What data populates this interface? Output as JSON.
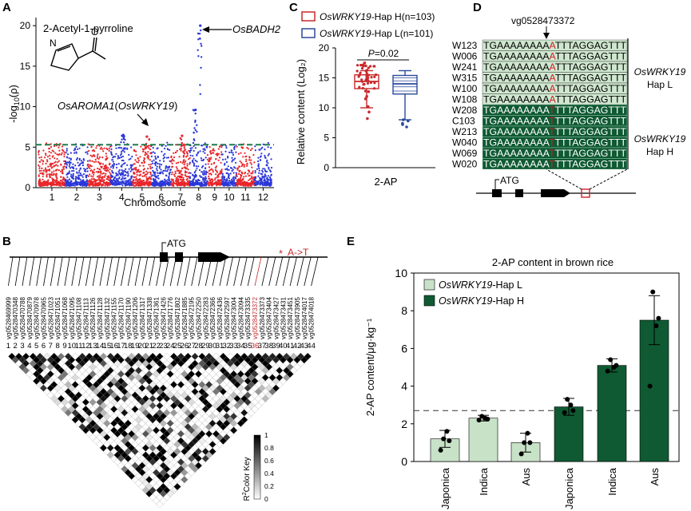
{
  "panels": {
    "A": {
      "letter": "A",
      "compound": "2-Acetyl-1-pyrroline",
      "ylabel_prefix": "-log",
      "ylabel_sub": "10",
      "ylabel_suffix": "(ρ)",
      "xlabel": "Chromosome",
      "gene_badh2": "OsBADH2",
      "gene_aroma1_a": "OsAROMA1",
      "gene_aroma1_b": "(",
      "gene_aroma1_c": "OsWRKY19",
      "gene_aroma1_d": ")",
      "atom_n": "N",
      "atom_o": "O",
      "colors": {
        "odd": "#e8262a",
        "even": "#2a37d8",
        "threshold": "#1f7a4a"
      }
    },
    "B": {
      "letter": "B",
      "atg": "ATG",
      "mutation": "A->T",
      "star": "*",
      "color_key_label_a": "R",
      "color_key_label_sup": "2",
      "color_key_label_b": "Color Key",
      "snps": [
        "vg0528469999",
        "vg0528470348",
        "vg0528470788",
        "vg0528470879",
        "vg0528470978",
        "vg0528470965",
        "vg0528471023",
        "vg0528471051",
        "vg0528471068",
        "vg0528471095",
        "vg0528471108",
        "vg0528471113",
        "vg0528471126",
        "vg0528471128",
        "vg0528471132",
        "vg0528471155",
        "vg0528471170",
        "vg0528471190",
        "vg0528471206",
        "vg0528471317",
        "vg0528471338",
        "vg0528471361",
        "vg0528471426",
        "vg0528471776",
        "vg0528471802",
        "vg0528471885",
        "vg0528472195",
        "vg0528472250",
        "vg0528472283",
        "vg0528472366",
        "vg0528472436",
        "vg0528472597",
        "vg0528473004",
        "vg0528473094",
        "vg0528473335",
        "vg0528473372",
        "vg0528473373",
        "vg0528473404",
        "vg0528473427",
        "vg0528473431",
        "vg0528473451",
        "vg0528473905",
        "vg0528474017",
        "vg0528474018"
      ],
      "highlight_index": 35
    },
    "C": {
      "letter": "C",
      "legend_h_gene": "OsWRKY19",
      "legend_h_rest": "-Hap H(n=103)",
      "legend_l_gene": "OsWRKY19",
      "legend_l_rest": "-Hap L(n=101)",
      "pvalue": "P=0.02",
      "ylabel": "Relative content (Log₂)",
      "xlabel": "2-AP",
      "colors": {
        "hapH": "#c8282a",
        "hapL": "#2a4a9a"
      }
    },
    "D": {
      "letter": "D",
      "snp": "vg0528473372",
      "seq_left": "TGAAAAAAAA",
      "seq_mid": "A",
      "seq_mid_h": "T",
      "seq_right": "TTTAGGAGTTT",
      "hapL_ids": [
        "W123",
        "W006",
        "W241",
        "W315",
        "W100",
        "W108"
      ],
      "hapH_ids": [
        "W208",
        "C103",
        "W213",
        "W040",
        "W069",
        "W020"
      ],
      "hapL_gene": "OsWRKY19",
      "hapL_label": "Hap L",
      "hapH_gene": "OsWRKY19",
      "hapH_label": "Hap H",
      "atg": "ATG",
      "colors": {
        "hapL": "#cfe6cf",
        "hapH": "#0f5a33",
        "snp": "#d1202a"
      }
    },
    "E": {
      "letter": "E",
      "title": "2-AP content in brown rice",
      "ylabel": "2-AP content/μg·kg⁻¹",
      "legend_l_gene": "OsWRKY19",
      "legend_l_rest": "-Hap L",
      "legend_h_gene": "OsWRKY19",
      "legend_h_rest": "-Hap H",
      "colors": {
        "hapL": "#c8e2c8",
        "hapH": "#0f5a33"
      }
    }
  },
  "chart_data": [
    {
      "panel": "A",
      "type": "scatter",
      "title": "2-Acetyl-1-pyrroline",
      "xlabel": "Chromosome",
      "ylabel": "-log10(p)",
      "ylim": [
        0,
        21
      ],
      "yticks": [
        0,
        5,
        10,
        15,
        20
      ],
      "categories": [
        "1",
        "2",
        "3",
        "4",
        "5",
        "6",
        "7",
        "8",
        "9",
        "10",
        "11",
        "12"
      ],
      "threshold": 5.3,
      "peaks": [
        {
          "chromosome": "5",
          "value": 6.3,
          "label": "OsAROMA1(OsWRKY19)"
        },
        {
          "chromosome": "8",
          "value": 20.0,
          "label": "OsBADH2"
        },
        {
          "chromosome": "8",
          "value": 9.6,
          "label": ""
        },
        {
          "chromosome": "4",
          "value": 6.5,
          "label": ""
        },
        {
          "chromosome": "7",
          "value": 6.4,
          "label": ""
        }
      ]
    },
    {
      "panel": "C",
      "type": "box",
      "xlabel": "2-AP",
      "ylabel": "Relative content (Log2)",
      "ylim": [
        0,
        20
      ],
      "yticks": [
        0,
        5,
        10,
        15,
        20
      ],
      "series": [
        {
          "name": "OsWRKY19-Hap H(n=103)",
          "min": 10.0,
          "q1": 13.2,
          "median": 14.4,
          "q3": 15.5,
          "max": 16.2,
          "outliers": [
            8.2,
            9.3,
            10.2,
            11.5,
            11.9,
            12.7,
            12.8,
            17.0,
            17.5
          ]
        },
        {
          "name": "OsWRKY19-Hap L(n=101)",
          "min": 8.0,
          "q1": 12.3,
          "median": 14.0,
          "q3": 15.4,
          "max": 16.2,
          "outliers": [
            7.8,
            7.4,
            8.0,
            6.8,
            7.2
          ]
        }
      ],
      "annotation": "P=0.02"
    },
    {
      "panel": "E",
      "type": "bar",
      "title": "2-AP content in brown rice",
      "ylabel": "2-AP content/μg·kg-1",
      "categories": [
        "Japonica",
        "Indica",
        "Aus",
        "Japonica",
        "Indica",
        "Aus"
      ],
      "values": [
        1.2,
        2.3,
        1.0,
        2.9,
        5.1,
        7.5
      ],
      "errors": [
        0.45,
        0.15,
        0.5,
        0.45,
        0.35,
        1.3
      ],
      "groups": [
        "OsWRKY19-Hap L",
        "OsWRKY19-Hap L",
        "OsWRKY19-Hap L",
        "OsWRKY19-Hap H",
        "OsWRKY19-Hap H",
        "OsWRKY19-Hap H"
      ],
      "points": [
        [
          0.6,
          1.2,
          1.6,
          1.1
        ],
        [
          2.2,
          2.4,
          2.3,
          2.25
        ],
        [
          0.4,
          1.0,
          1.5,
          1.0
        ],
        [
          2.6,
          3.3,
          3.0,
          2.7
        ],
        [
          4.8,
          5.4,
          5.0,
          5.1
        ],
        [
          4.0,
          9.0,
          7.2,
          7.6
        ]
      ],
      "ylim": [
        0,
        10
      ],
      "yticks": [
        0,
        2,
        4,
        6,
        8,
        10
      ],
      "reference_line": 2.7
    }
  ]
}
